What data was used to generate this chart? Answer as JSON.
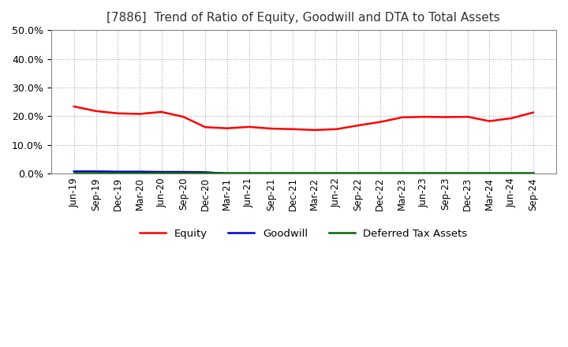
{
  "title": "[7886]  Trend of Ratio of Equity, Goodwill and DTA to Total Assets",
  "title_fontsize": 11,
  "ylim": [
    0,
    0.5
  ],
  "yticks": [
    0.0,
    0.1,
    0.2,
    0.3,
    0.4,
    0.5
  ],
  "x_labels": [
    "Jun-19",
    "Sep-19",
    "Dec-19",
    "Mar-20",
    "Jun-20",
    "Sep-20",
    "Dec-20",
    "Mar-21",
    "Jun-21",
    "Sep-21",
    "Dec-21",
    "Mar-22",
    "Jun-22",
    "Sep-22",
    "Dec-22",
    "Mar-23",
    "Jun-23",
    "Sep-23",
    "Dec-23",
    "Mar-24",
    "Jun-24",
    "Sep-24"
  ],
  "equity": [
    0.234,
    0.218,
    0.21,
    0.208,
    0.215,
    0.198,
    0.162,
    0.158,
    0.163,
    0.157,
    0.155,
    0.152,
    0.155,
    0.168,
    0.18,
    0.196,
    0.198,
    0.197,
    0.198,
    0.183,
    0.193,
    0.213
  ],
  "goodwill": [
    0.008,
    0.008,
    0.007,
    0.007,
    0.006,
    0.006,
    0.005,
    0.0,
    0.0,
    0.0,
    0.0,
    0.0,
    0.0,
    0.0,
    0.0,
    0.0,
    0.0,
    0.0,
    0.0,
    0.0,
    0.0,
    0.0
  ],
  "dta": [
    0.002,
    0.002,
    0.002,
    0.002,
    0.002,
    0.002,
    0.002,
    0.002,
    0.002,
    0.002,
    0.002,
    0.002,
    0.002,
    0.002,
    0.002,
    0.002,
    0.002,
    0.002,
    0.002,
    0.002,
    0.002,
    0.002
  ],
  "equity_color": "#ff0000",
  "goodwill_color": "#0000cc",
  "dta_color": "#006600",
  "equity_label": "Equity",
  "goodwill_label": "Goodwill",
  "dta_label": "Deferred Tax Assets",
  "grid_color": "#aaaaaa",
  "bg_color": "#ffffff",
  "line_width": 1.8
}
